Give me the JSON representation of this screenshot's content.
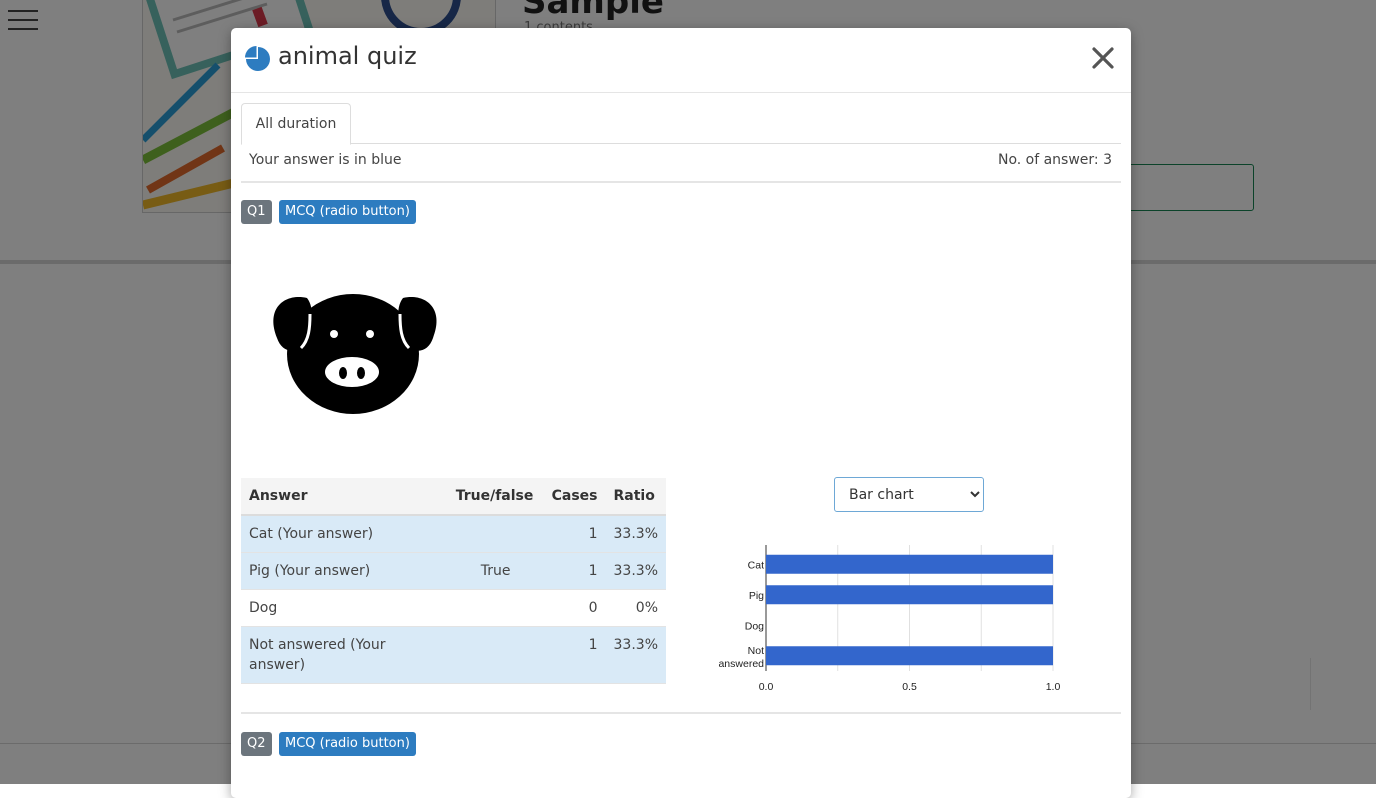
{
  "background": {
    "title": "Sample",
    "subtitle": "1 contents"
  },
  "modal": {
    "title": "animal quiz",
    "close_label": "×"
  },
  "tabs": [
    {
      "label": "All duration",
      "active": true
    }
  ],
  "info": {
    "your_answer_note": "Your answer is in blue",
    "answer_count": "No. of answer: 3"
  },
  "questions": [
    {
      "number": "Q1",
      "type": "MCQ (radio button)",
      "table": {
        "headers": [
          "Answer",
          "True/false",
          "Cases",
          "Ratio"
        ],
        "rows": [
          {
            "answer": "Cat (Your answer)",
            "true_false": "",
            "cases": "1",
            "ratio": "33.3%",
            "highlight": true
          },
          {
            "answer": "Pig (Your answer)",
            "true_false": "True",
            "cases": "1",
            "ratio": "33.3%",
            "highlight": true
          },
          {
            "answer": "Dog",
            "true_false": "",
            "cases": "0",
            "ratio": "0%",
            "highlight": false
          },
          {
            "answer": "Not answered (Your answer)",
            "true_false": "",
            "cases": "1",
            "ratio": "33.3%",
            "highlight": true
          }
        ]
      },
      "chart_select": {
        "selected": "Bar chart",
        "options": [
          "Bar chart"
        ]
      }
    },
    {
      "number": "Q2",
      "type": "MCQ (radio button)"
    }
  ],
  "chart_data": {
    "type": "bar",
    "orientation": "horizontal",
    "categories": [
      "Cat",
      "Pig",
      "Dog",
      "Not answered"
    ],
    "values": [
      1,
      1,
      0,
      1
    ],
    "xlim": [
      0,
      1
    ],
    "xticks": [
      "0.0",
      "0.5",
      "1.0"
    ],
    "title": "",
    "xlabel": "",
    "ylabel": "",
    "grid": true,
    "bar_color": "#3366cc"
  },
  "colors": {
    "accent": "#2d7cc0",
    "highlight_row": "#d9eaf7",
    "badge_gray": "#6c757d"
  }
}
